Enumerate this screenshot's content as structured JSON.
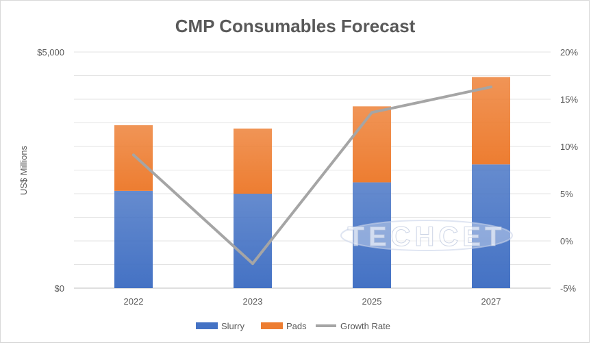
{
  "chart_data": {
    "type": "bar",
    "stacked": true,
    "title": "CMP Consumables Forecast",
    "ylabel": "US$ Millions",
    "categories": [
      "2022",
      "2023",
      "2025",
      "2027"
    ],
    "series": [
      {
        "name": "Slurry",
        "values": [
          2060,
          2000,
          2240,
          2620
        ],
        "color": "#4472c4"
      },
      {
        "name": "Pads",
        "values": [
          1390,
          1380,
          1610,
          1850
        ],
        "color": "#ed7d31"
      }
    ],
    "line_series": {
      "name": "Growth Rate",
      "axis": "right",
      "values": [
        9.1,
        -2.4,
        13.6,
        16.3
      ],
      "color": "#a5a5a5"
    },
    "ylim": [
      0,
      5000
    ],
    "y2lim": [
      -5,
      20
    ],
    "y_tick_labels": [
      "$0",
      "$5,000"
    ],
    "y2_tick_labels": [
      "-5%",
      "0%",
      "5%",
      "10%",
      "15%",
      "20%"
    ],
    "grid": true,
    "legend_position": "bottom",
    "watermark": "TECHCET"
  }
}
